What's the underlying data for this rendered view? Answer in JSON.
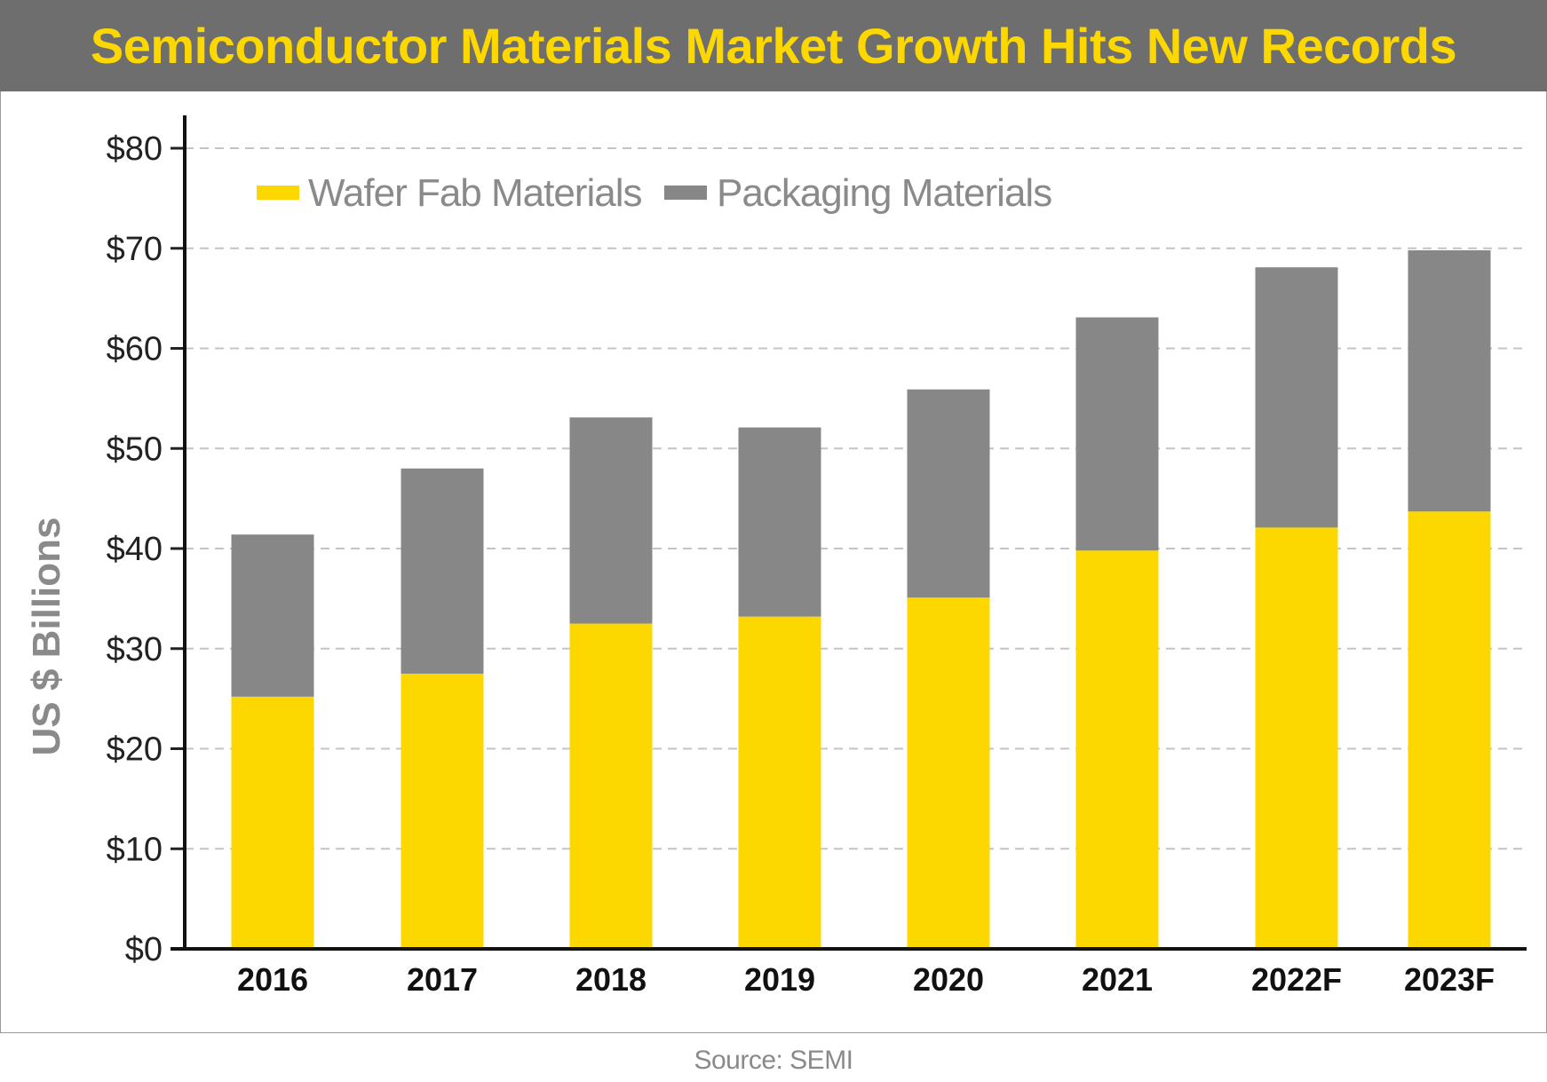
{
  "chart_data": {
    "type": "bar",
    "stacked": true,
    "title": "Semiconductor Materials Market Growth Hits New Records",
    "ylabel": "US $ Billions",
    "xlabel": "",
    "ylim": [
      0,
      80
    ],
    "yticks": [
      0,
      10,
      20,
      30,
      40,
      50,
      60,
      70,
      80
    ],
    "ytick_labels": [
      "$0",
      "$10",
      "$20",
      "$30",
      "$40",
      "$50",
      "$60",
      "$70",
      "$80"
    ],
    "grid": true,
    "legend_position": "top-left",
    "categories": [
      "2016",
      "2017",
      "2018",
      "2019",
      "2020",
      "2021",
      "2022F",
      "2023F"
    ],
    "series": [
      {
        "name": "Wafer Fab Materials",
        "color": "#fcd800",
        "values": [
          25.2,
          27.5,
          32.5,
          33.2,
          35.1,
          39.8,
          42.1,
          43.7
        ]
      },
      {
        "name": "Packaging Materials",
        "color": "#878787",
        "values": [
          16.2,
          20.5,
          20.6,
          18.9,
          20.8,
          23.3,
          26.0,
          26.1
        ]
      }
    ],
    "source": "Source: SEMI"
  }
}
